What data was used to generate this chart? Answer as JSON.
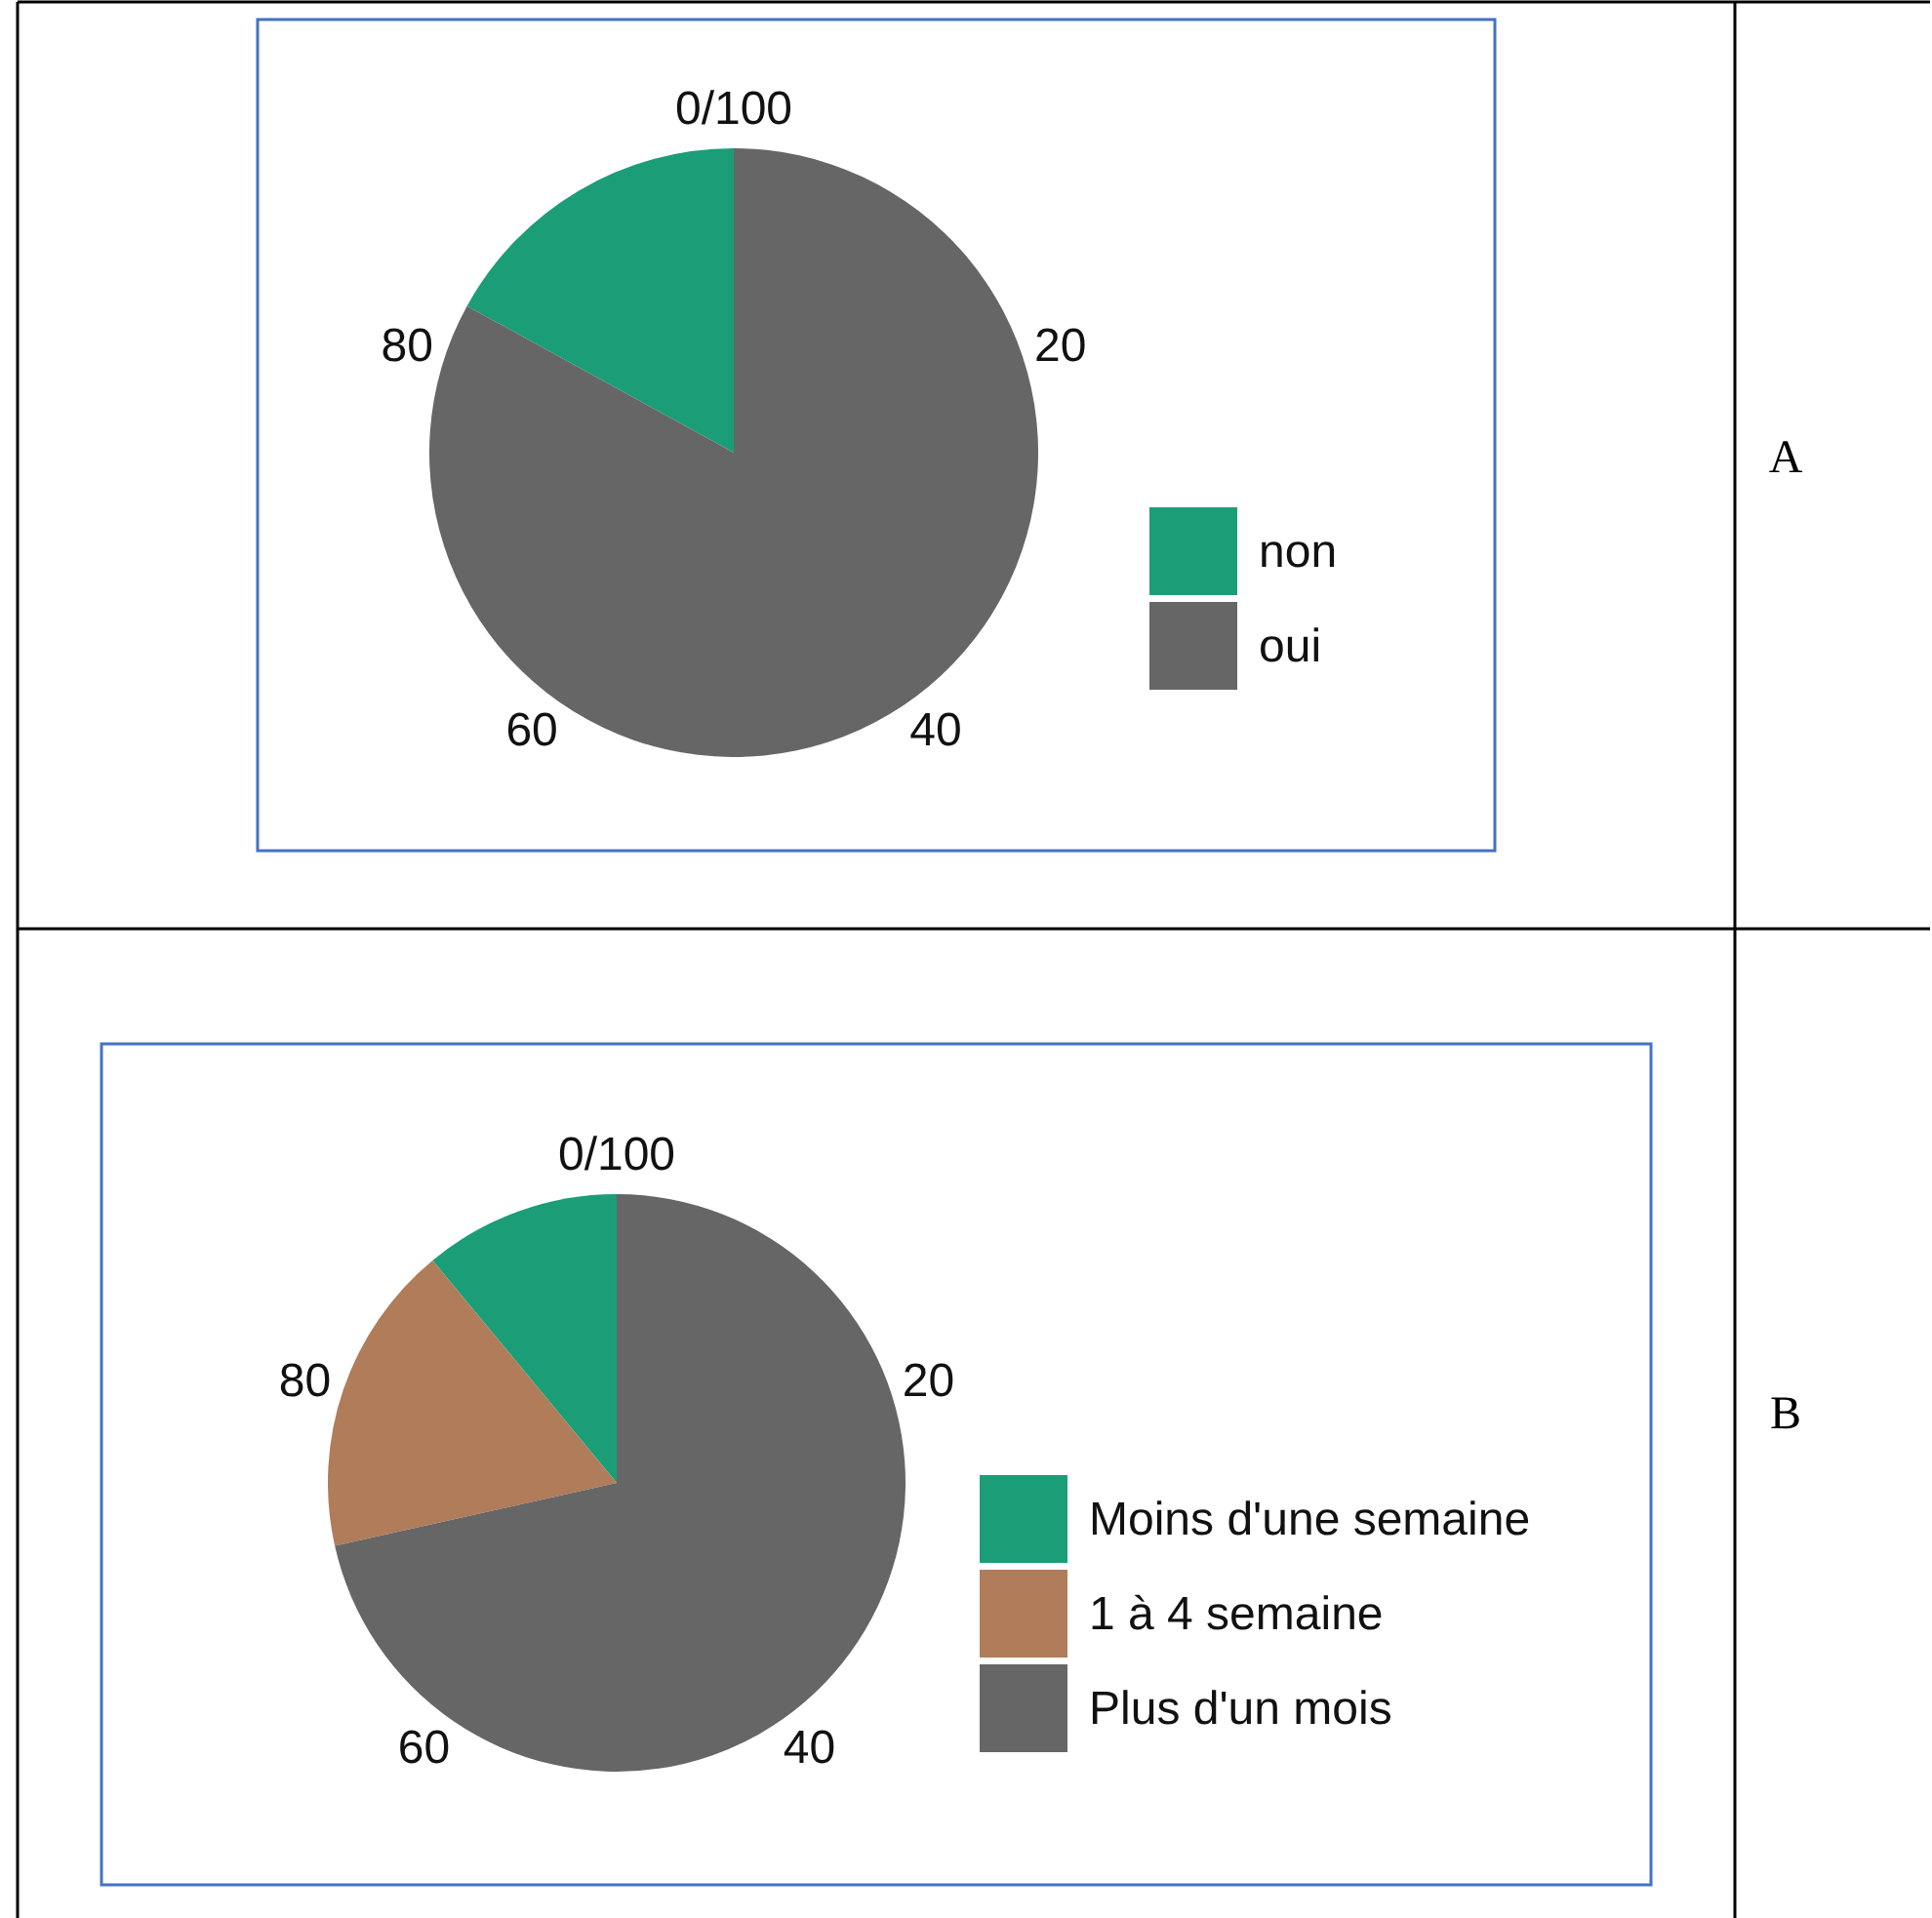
{
  "chart_data": [
    {
      "type": "pie",
      "title": "A",
      "categories": [
        "non",
        "oui"
      ],
      "values": [
        17,
        83
      ],
      "colors": [
        "#1b9e77",
        "#666666"
      ],
      "legend": "right",
      "annotations": [
        "0/100",
        "20",
        "40",
        "60",
        "80"
      ]
    },
    {
      "type": "pie",
      "title": "B",
      "categories": [
        "Moins d'une semaine",
        "1 à 4 semaine",
        "Plus d'un mois"
      ],
      "values": [
        11,
        17.5,
        71.5
      ],
      "colors": [
        "#1b9e77",
        "#b07c5a",
        "#666666"
      ],
      "legend": "right",
      "annotations": [
        "0/100",
        "20",
        "40",
        "60",
        "80"
      ]
    }
  ]
}
